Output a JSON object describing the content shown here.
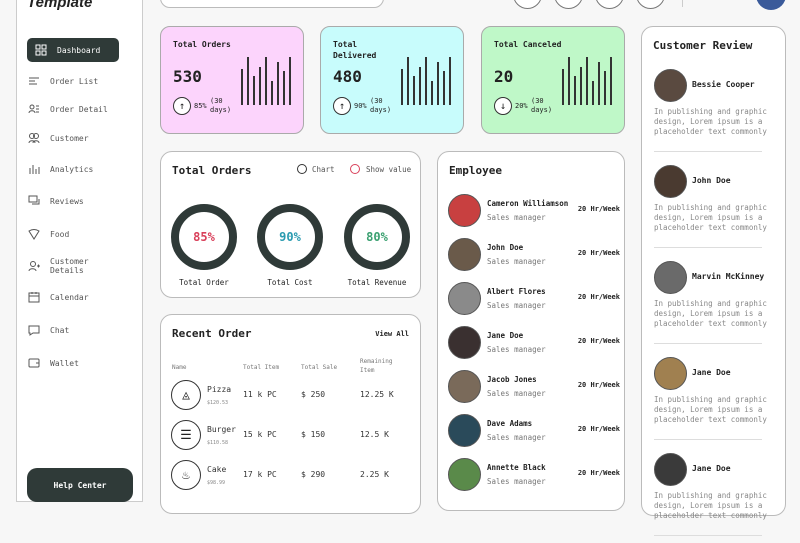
{
  "app": {
    "logo": "Template"
  },
  "sidebar": {
    "items": [
      {
        "label": "Dashboard",
        "icon": "grid-icon",
        "active": true
      },
      {
        "label": "Order List",
        "icon": "list-icon"
      },
      {
        "label": "Order Detail",
        "icon": "user-list-icon"
      },
      {
        "label": "Customer",
        "icon": "users-icon"
      },
      {
        "label": "Analytics",
        "icon": "bar-chart-icon"
      },
      {
        "label": "Reviews",
        "icon": "chat-bubbles-icon"
      },
      {
        "label": "Food",
        "icon": "pizza-icon"
      },
      {
        "label": "Customer Details",
        "icon": "user-plus-icon"
      },
      {
        "label": "Calendar",
        "icon": "calendar-icon"
      },
      {
        "label": "Chat",
        "icon": "chat-icon"
      },
      {
        "label": "Wallet",
        "icon": "wallet-icon"
      }
    ],
    "help": "Help Center"
  },
  "stats": [
    {
      "title": "Total Orders",
      "value": "530",
      "pct": "85%",
      "period": "(30 days)",
      "trend": "up",
      "color": "#fcd4fc"
    },
    {
      "title": "Total Delivered",
      "value": "480",
      "pct": "90%",
      "period": "(30 days)",
      "trend": "up",
      "color": "#c8fcfc"
    },
    {
      "title": "Total Canceled",
      "value": "20",
      "pct": "20%",
      "period": "(30 days)",
      "trend": "down",
      "color": "#bff8c8"
    }
  ],
  "orders_chart": {
    "title": "Total Orders",
    "legend_chart": "Chart",
    "legend_value": "Show value",
    "rings": [
      {
        "value": "85%",
        "label": "Total Order",
        "color": "#d9405a"
      },
      {
        "value": "90%",
        "label": "Total Cost",
        "color": "#2a9bb0"
      },
      {
        "value": "80%",
        "label": "Total Revenue",
        "color": "#3aa070"
      }
    ]
  },
  "recent": {
    "title": "Recent Order",
    "view_all": "View All",
    "headers": [
      "Name",
      "Total Item",
      "Total Sale",
      "Remaining Item"
    ],
    "rows": [
      {
        "name": "Pizza",
        "price": "$120.53",
        "items": "11 k PC",
        "sale": "$ 250",
        "remaining": "12.25 K",
        "icon": "pizza-icon"
      },
      {
        "name": "Burger",
        "price": "$110.58",
        "items": "15 k PC",
        "sale": "$ 150",
        "remaining": "12.5 K",
        "icon": "burger-icon"
      },
      {
        "name": "Cake",
        "price": "$98.99",
        "items": "17 k PC",
        "sale": "$ 290",
        "remaining": "2.25 K",
        "icon": "cake-icon"
      }
    ]
  },
  "employee": {
    "title": "Employee",
    "items": [
      {
        "name": "Cameron Williamson",
        "role": "Sales manager",
        "hours": "20 Hr/Week"
      },
      {
        "name": "John Doe",
        "role": "Sales manager",
        "hours": "20 Hr/Week"
      },
      {
        "name": "Albert Flores",
        "role": "Sales manager",
        "hours": "20 Hr/Week"
      },
      {
        "name": "Jane Doe",
        "role": "Sales manager",
        "hours": "20 Hr/Week"
      },
      {
        "name": "Jacob Jones",
        "role": "Sales manager",
        "hours": "20 Hr/Week"
      },
      {
        "name": "Dave Adams",
        "role": "Sales manager",
        "hours": "20 Hr/Week"
      },
      {
        "name": "Annette Black",
        "role": "Sales manager",
        "hours": "20 Hr/Week"
      }
    ]
  },
  "reviews": {
    "title": "Customer Review",
    "items": [
      {
        "name": "Bessie Cooper",
        "text": "In publishing and graphic design, Lorem ipsum is a placeholder text commonly"
      },
      {
        "name": "John Doe",
        "text": "In publishing and graphic design, Lorem ipsum is a placeholder text commonly"
      },
      {
        "name": "Marvin McKinney",
        "text": "In publishing and graphic design, Lorem ipsum is a placeholder text commonly"
      },
      {
        "name": "Jane Doe",
        "text": "In publishing and graphic design, Lorem ipsum is a placeholder text commonly"
      },
      {
        "name": "Jane Doe",
        "text": "In publishing and graphic design, Lorem ipsum is a placeholder text commonly"
      }
    ]
  }
}
